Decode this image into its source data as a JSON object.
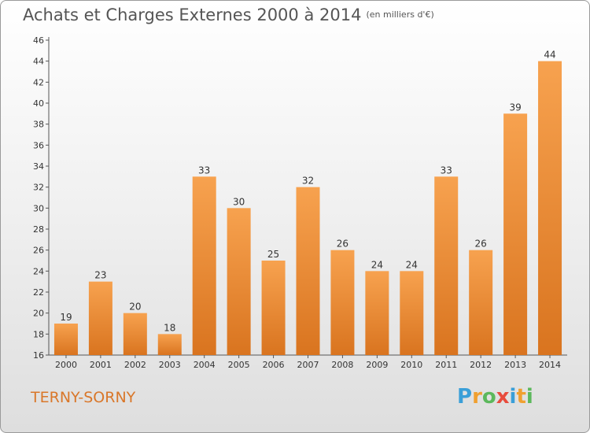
{
  "chart_data": {
    "type": "bar",
    "title": "Achats et Charges Externes 2000 à 2014",
    "subtitle": "(en milliers d'€)",
    "categories": [
      "2000",
      "2001",
      "2002",
      "2003",
      "2004",
      "2005",
      "2006",
      "2007",
      "2008",
      "2009",
      "2010",
      "2011",
      "2012",
      "2013",
      "2014"
    ],
    "values": [
      19,
      23,
      20,
      18,
      33,
      30,
      25,
      32,
      26,
      24,
      24,
      33,
      26,
      39,
      44
    ],
    "ylim": [
      16,
      46
    ],
    "yticks": [
      16,
      18,
      20,
      22,
      24,
      26,
      28,
      30,
      32,
      34,
      36,
      38,
      40,
      42,
      44,
      46
    ],
    "grid": false,
    "bar_color_top": "#f7a24f",
    "bar_color_bottom": "#d9741f"
  },
  "place_name": "TERNY-SORNY",
  "logo": {
    "letters": [
      "P",
      "r",
      "o",
      "x",
      "i",
      "t",
      "i"
    ],
    "colors": [
      "#3a9fd8",
      "#f0a030",
      "#5cb85c",
      "#e84c3d",
      "#3a9fd8",
      "#f0a030",
      "#5cb85c"
    ]
  }
}
